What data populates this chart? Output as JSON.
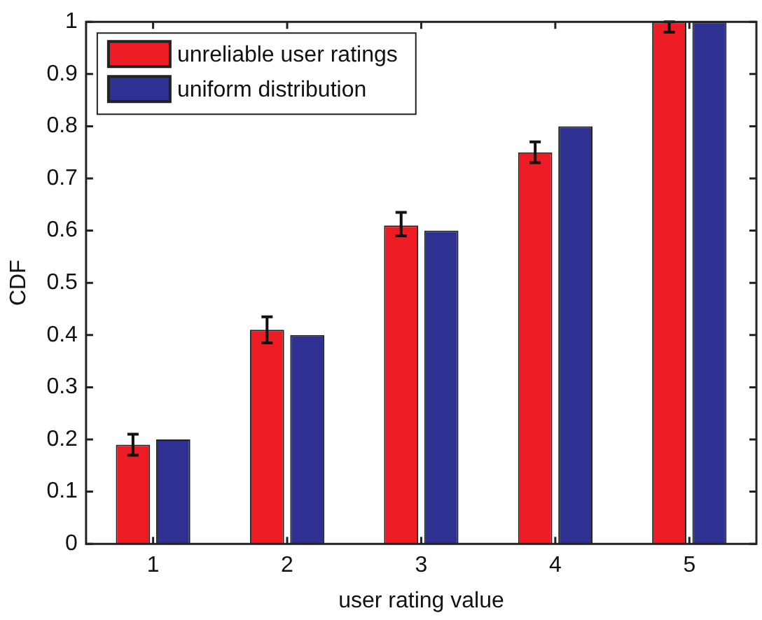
{
  "chart_data": {
    "type": "bar",
    "xlabel": "user rating value",
    "ylabel": "CDF",
    "categories": [
      "1",
      "2",
      "3",
      "4",
      "5"
    ],
    "series": [
      {
        "name": "unreliable user ratings",
        "color": "#ed1c24",
        "values": [
          0.19,
          0.41,
          0.61,
          0.75,
          1.0
        ],
        "errors": [
          [
            0.17,
            0.21
          ],
          [
            0.385,
            0.435
          ],
          [
            0.59,
            0.635
          ],
          [
            0.73,
            0.77
          ],
          [
            0.98,
            1.0
          ]
        ]
      },
      {
        "name": "uniform distribution",
        "color": "#2e3192",
        "values": [
          0.2,
          0.4,
          0.6,
          0.8,
          1.0
        ]
      }
    ],
    "ylim": [
      0,
      1
    ],
    "yticks": [
      0,
      0.1,
      0.2,
      0.3,
      0.4,
      0.5,
      0.6,
      0.7,
      0.8,
      0.9,
      1
    ],
    "legend": "top left",
    "grid": false
  }
}
